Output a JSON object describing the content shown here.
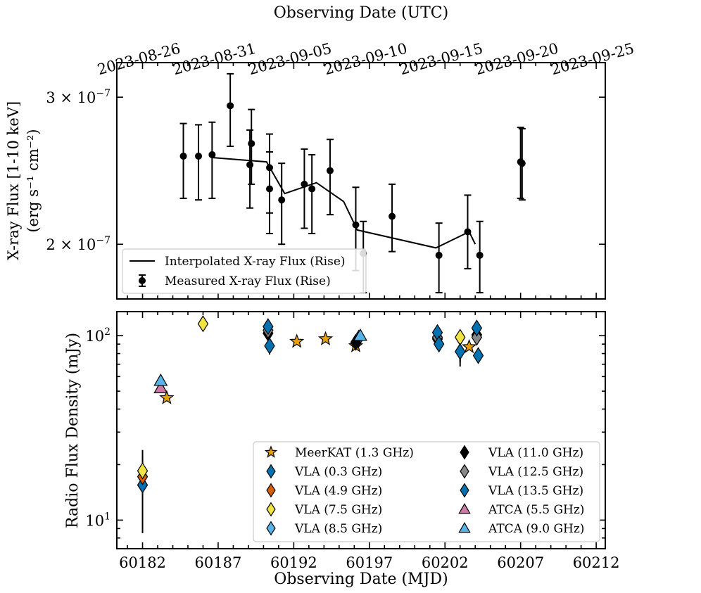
{
  "chart_data": [
    {
      "type": "scatter",
      "name": "xray-panel",
      "top_axis": {
        "label": "Observing Date (UTC)",
        "ticks": [
          {
            "mjd": 60182,
            "label": "2023-08-26"
          },
          {
            "mjd": 60187,
            "label": "2023-08-31"
          },
          {
            "mjd": 60192,
            "label": "2023-09-05"
          },
          {
            "mjd": 60197,
            "label": "2023-09-10"
          },
          {
            "mjd": 60202,
            "label": "2023-09-15"
          },
          {
            "mjd": 60207,
            "label": "2023-09-20"
          },
          {
            "mjd": 60212,
            "label": "2023-09-25"
          }
        ]
      },
      "ylabel_line1": "X-ray Flux [1-10 keV]",
      "ylabel_line2": "(erg s⁻¹ cm⁻²)",
      "yscale": "log",
      "ylim": [
        1.72e-07,
        3.3e-07
      ],
      "xlim": [
        60180.3,
        60212.6
      ],
      "ytick_labels": [
        {
          "value": 3e-07,
          "mant": "3 × 10",
          "exp": "−7"
        },
        {
          "value": 2e-07,
          "mant": "2 × 10",
          "exp": "−7"
        }
      ],
      "series": [
        {
          "name": "Measured X-ray Flux (Rise)",
          "points": [
            {
              "x": 60184.7,
              "y": 2.55e-07,
              "lo": 2.27e-07,
              "hi": 2.79e-07
            },
            {
              "x": 60185.7,
              "y": 2.55e-07,
              "lo": 2.26e-07,
              "hi": 2.78e-07
            },
            {
              "x": 60186.6,
              "y": 2.56e-07,
              "lo": 2.27e-07,
              "hi": 2.8e-07
            },
            {
              "x": 60187.8,
              "y": 2.93e-07,
              "lo": 2.62e-07,
              "hi": 3.2e-07
            },
            {
              "x": 60189.1,
              "y": 2.49e-07,
              "lo": 2.21e-07,
              "hi": 2.74e-07
            },
            {
              "x": 60189.2,
              "y": 2.64e-07,
              "lo": 2.36e-07,
              "hi": 2.9e-07
            },
            {
              "x": 60190.4,
              "y": 2.47e-07,
              "lo": 2.18e-07,
              "hi": 2.71e-07
            },
            {
              "x": 60190.4,
              "y": 2.33e-07,
              "lo": 2.06e-07,
              "hi": 2.58e-07
            },
            {
              "x": 60191.2,
              "y": 2.26e-07,
              "lo": 2e-07,
              "hi": 2.5e-07
            },
            {
              "x": 60192.7,
              "y": 2.36e-07,
              "lo": 2.09e-07,
              "hi": 2.6e-07
            },
            {
              "x": 60193.2,
              "y": 2.33e-07,
              "lo": 2.06e-07,
              "hi": 2.56e-07
            },
            {
              "x": 60194.4,
              "y": 2.45e-07,
              "lo": 2.17e-07,
              "hi": 2.67e-07
            },
            {
              "x": 60196.1,
              "y": 2.11e-07,
              "lo": 1.86e-07,
              "hi": 2.34e-07
            },
            {
              "x": 60196.6,
              "y": 1.95e-07,
              "lo": 1.75e-07,
              "hi": 2.13e-07
            },
            {
              "x": 60198.5,
              "y": 2.16e-07,
              "lo": 1.96e-07,
              "hi": 2.36e-07
            },
            {
              "x": 60201.6,
              "y": 1.94e-07,
              "lo": 1.75e-07,
              "hi": 2.12e-07
            },
            {
              "x": 60203.5,
              "y": 2.07e-07,
              "lo": 1.87e-07,
              "hi": 2.29e-07
            },
            {
              "x": 60204.3,
              "y": 1.94e-07,
              "lo": 1.75e-07,
              "hi": 2.13e-07
            },
            {
              "x": 60207.0,
              "y": 2.51e-07,
              "lo": 2.27e-07,
              "hi": 2.76e-07
            },
            {
              "x": 60207.1,
              "y": 2.5e-07,
              "lo": 2.26e-07,
              "hi": 2.75e-07
            }
          ]
        },
        {
          "name": "Interpolated X-ray Flux (Rise)",
          "line": [
            [
              60186.6,
              2.54e-07
            ],
            [
              60190.2,
              2.51e-07
            ],
            [
              60191.4,
              2.3e-07
            ],
            [
              60193.5,
              2.37e-07
            ],
            [
              60195.3,
              2.25e-07
            ],
            [
              60196.2,
              2.08e-07
            ],
            [
              60201.4,
              1.98e-07
            ],
            [
              60203.6,
              2.07e-07
            ],
            [
              60204.0,
              2e-07
            ]
          ]
        }
      ],
      "legend": [
        {
          "kind": "line",
          "label": "Interpolated X-ray Flux (Rise)"
        },
        {
          "kind": "errpoint",
          "label": "Measured X-ray Flux (Rise)"
        }
      ]
    },
    {
      "type": "scatter",
      "name": "radio-panel",
      "xlabel": "Observing Date (MJD)",
      "ylabel": "Radio Flux Density (mJy)",
      "yscale": "log",
      "ylim": [
        7.0,
        135
      ],
      "xlim": [
        60180.3,
        60212.6
      ],
      "xticks": [
        {
          "value": 60182,
          "label": "60182"
        },
        {
          "value": 60187,
          "label": "60187"
        },
        {
          "value": 60192,
          "label": "60192"
        },
        {
          "value": 60197,
          "label": "60197"
        },
        {
          "value": 60202,
          "label": "60202"
        },
        {
          "value": 60207,
          "label": "60207"
        },
        {
          "value": 60212,
          "label": "60212"
        }
      ],
      "ytick_labels": [
        {
          "value": 100,
          "mant": "10",
          "exp": "2"
        },
        {
          "value": 10,
          "mant": "10",
          "exp": "1"
        }
      ],
      "series": [
        {
          "name": "MeerKAT (1.3 GHz)",
          "marker": "star",
          "color": "#E69F00",
          "points": [
            {
              "x": 60183.6,
              "y": 46
            },
            {
              "x": 60192.2,
              "y": 93
            },
            {
              "x": 60194.1,
              "y": 96
            },
            {
              "x": 60196.1,
              "y": 88
            },
            {
              "x": 60203.6,
              "y": 87
            }
          ]
        },
        {
          "name": "VLA (0.3 GHz)",
          "marker": "diamond",
          "color": "#0072B2",
          "points": [
            {
              "x": 60182.0,
              "y": 15.5,
              "lo": 8.5,
              "hi": 22
            }
          ]
        },
        {
          "name": "VLA (4.9 GHz)",
          "marker": "diamond",
          "color": "#D55E00",
          "points": [
            {
              "x": 60182.0,
              "y": 17.2
            }
          ]
        },
        {
          "name": "VLA (7.5 GHz)",
          "marker": "diamond",
          "color": "#F0E442",
          "points": [
            {
              "x": 60182.0,
              "y": 18.5,
              "lo": 17,
              "hi": 24
            },
            {
              "x": 60186.0,
              "y": 116
            },
            {
              "x": 60203.0,
              "y": 98,
              "lo": 68,
              "hi": 104
            }
          ]
        },
        {
          "name": "VLA (8.5 GHz)",
          "marker": "diamond",
          "color": "#56B4E9",
          "points": [
            {
              "x": 60196.3,
              "y": 97
            }
          ]
        },
        {
          "name": "VLA (11.0 GHz)",
          "marker": "diamond",
          "color": "#000000",
          "points": [
            {
              "x": 60190.3,
              "y": 103
            },
            {
              "x": 60196.1,
              "y": 92
            },
            {
              "x": 60201.5,
              "y": 96
            },
            {
              "x": 60204.1,
              "y": 101
            }
          ]
        },
        {
          "name": "VLA (12.5 GHz)",
          "marker": "diamond",
          "color": "#888888",
          "points": [
            {
              "x": 60190.3,
              "y": 107
            },
            {
              "x": 60201.5,
              "y": 98
            },
            {
              "x": 60204.1,
              "y": 98
            }
          ]
        },
        {
          "name": "VLA (13.5 GHz)",
          "marker": "diamond",
          "color": "#0072B2",
          "points": [
            {
              "x": 60190.3,
              "y": 112
            },
            {
              "x": 60190.4,
              "y": 88,
              "lo": 79,
              "hi": 96
            },
            {
              "x": 60201.5,
              "y": 104
            },
            {
              "x": 60201.6,
              "y": 90,
              "lo": 82,
              "hi": 98
            },
            {
              "x": 60203.0,
              "y": 82,
              "lo": 72,
              "hi": 90
            },
            {
              "x": 60204.1,
              "y": 110
            },
            {
              "x": 60204.2,
              "y": 78,
              "lo": 72,
              "hi": 86
            }
          ]
        },
        {
          "name": "ATCA (5.5 GHz)",
          "marker": "triangle",
          "color": "#CC79A7",
          "points": [
            {
              "x": 60183.2,
              "y": 52
            }
          ]
        },
        {
          "name": "ATCA (9.0 GHz)",
          "marker": "triangle",
          "color": "#56B4E9",
          "points": [
            {
              "x": 60183.2,
              "y": 57
            },
            {
              "x": 60196.4,
              "y": 100
            }
          ]
        }
      ]
    }
  ]
}
